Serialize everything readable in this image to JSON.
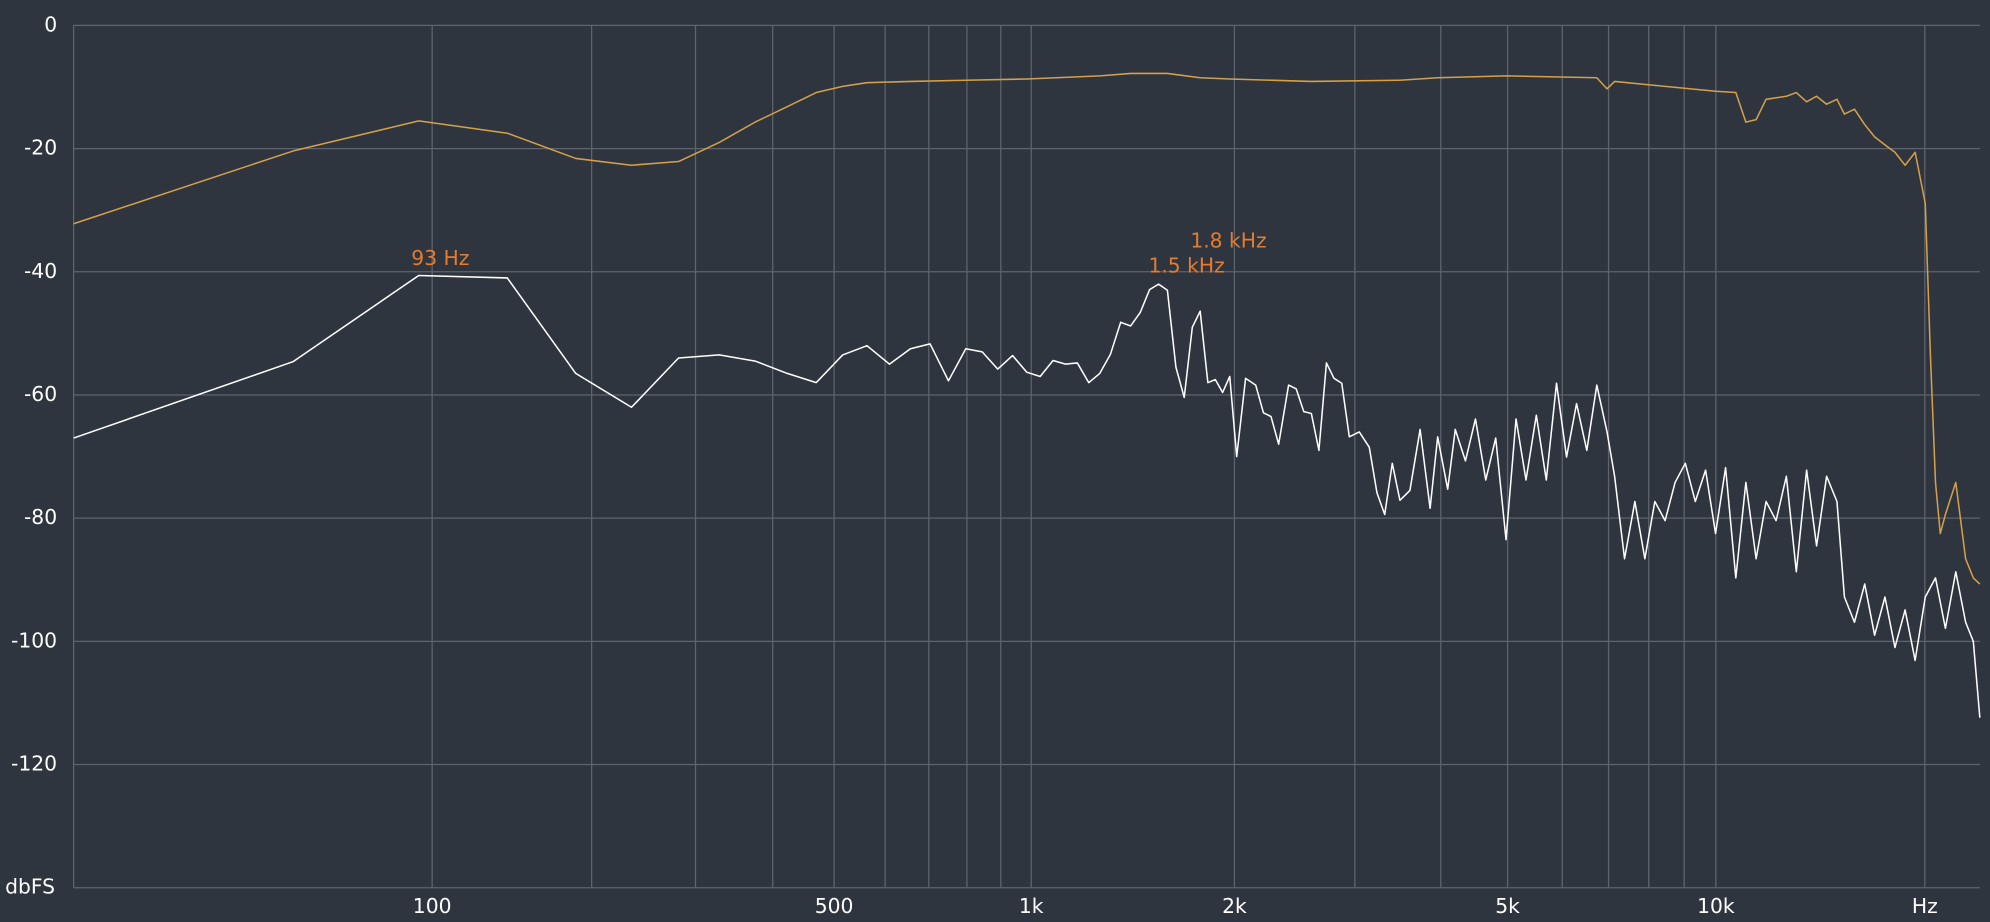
{
  "chart_data": {
    "type": "line",
    "xscale": "log",
    "xlim": [
      0,
      24000
    ],
    "xticks": [
      100,
      500,
      {
        "value": 1000,
        "label": "1k"
      },
      {
        "value": 2000,
        "label": "2k"
      },
      {
        "value": 5000,
        "label": "5k"
      },
      {
        "value": 10000,
        "label": "10k"
      },
      {
        "value": 20000,
        "label": "Hz"
      }
    ],
    "xgrid": [
      200,
      300,
      400,
      600,
      700,
      800,
      900,
      3000,
      4000,
      6000,
      7000,
      8000,
      9000
    ],
    "ylim": [
      -140,
      0
    ],
    "yticks": [
      0,
      -20,
      -40,
      -60,
      -80,
      -100,
      -120,
      {
        "value": -140,
        "label": "dbFS"
      }
    ],
    "grid": true,
    "annotations": [
      "93 Hz",
      "1.5 kHz",
      "1.8 kHz"
    ],
    "annotation_color": "#e57b2c",
    "series": [
      {
        "color": "#d4a04a",
        "x": [
          0,
          46.875,
          93.75,
          140.625,
          187.5,
          234.375,
          281.25,
          328.125,
          375,
          421.875,
          468.75,
          515.625,
          562.5,
          656.25,
          796.875,
          984.375,
          1265.625,
          1406.25,
          1593.75,
          1781.25,
          1968.75,
          2592,
          3489,
          3959,
          4974,
          6731,
          6964,
          7142,
          8448,
          9990,
          10685,
          11047,
          11430,
          11814,
          12637,
          13061,
          13515,
          13970,
          14442,
          14946,
          15321,
          15839,
          16386,
          16934,
          17524,
          18114,
          18734,
          19367,
          20030,
          20375,
          20721,
          21052,
          21412,
          22161,
          22895,
          23486,
          24000
        ],
        "values": [
          -32.2,
          -20.4,
          -15.5,
          -17.5,
          -21.6,
          -22.7,
          -22.1,
          -19,
          -15.7,
          -13.2,
          -10.9,
          -9.9,
          -9.3,
          -9.1,
          -8.9,
          -8.7,
          -8.2,
          -7.8,
          -7.8,
          -8.5,
          -8.7,
          -9.1,
          -8.9,
          -8.5,
          -8.2,
          -8.5,
          -10.3,
          -9.1,
          -9.9,
          -10.7,
          -10.9,
          -15.7,
          -15.3,
          -12,
          -11.5,
          -10.9,
          -12.4,
          -11.5,
          -12.8,
          -12,
          -14.4,
          -13.6,
          -16.1,
          -18.1,
          -19.4,
          -20.6,
          -22.7,
          -20.6,
          -28.9,
          -53.6,
          -74.2,
          -82.5,
          -79.4,
          -74.2,
          -86.6,
          -89.7,
          -90.7
        ]
      },
      {
        "color": "#ffffff",
        "x": [
          0,
          46.875,
          93.75,
          140.625,
          187.5,
          234.375,
          281.25,
          328.125,
          375,
          421.875,
          468.75,
          515.625,
          562.5,
          609.375,
          656.25,
          703.125,
          750,
          796.875,
          843.75,
          890.625,
          937.5,
          984.375,
          1031.25,
          1078.125,
          1125,
          1171.875,
          1218.75,
          1265.625,
          1312.5,
          1359.375,
          1406.25,
          1453.125,
          1500,
          1546.875,
          1593.75,
          1640.625,
          1687.5,
          1734.375,
          1781.25,
          1828.125,
          1875,
          1921.875,
          1968.75,
          2015.625,
          2077,
          2149,
          2206,
          2263,
          2322,
          2401,
          2463,
          2527,
          2592,
          2659,
          2727,
          2797,
          2871,
          2945,
          3045,
          3149,
          3231,
          3316,
          3401,
          3489,
          3608,
          3733,
          3860,
          3959,
          4094,
          4199,
          4344,
          4492,
          4649,
          4806,
          4974,
          5143,
          5317,
          5503,
          5689,
          5886,
          6086,
          6292,
          6511,
          6731,
          6964,
          7142,
          7382,
          7640,
          7898,
          8164,
          8448,
          8733,
          9035,
          9340,
          9664,
          9990,
          10328,
          10685,
          11047,
          11430,
          11814,
          12213,
          12637,
          13061,
          13515,
          13970,
          14442,
          14946,
          15321,
          15839,
          16386,
          16934,
          17524,
          18114,
          18734,
          19367,
          20030,
          20721,
          21412,
          22161,
          22895,
          23486,
          24000
        ],
        "values": [
          -67,
          -54.6,
          -40.6,
          -41,
          -56.5,
          -62,
          -54,
          -53.5,
          -54.5,
          -56.5,
          -58,
          -53.5,
          -52,
          -55,
          -52.5,
          -51.7,
          -57.7,
          -52.5,
          -53,
          -55.8,
          -53.6,
          -56.3,
          -57,
          -54.4,
          -55,
          -54.8,
          -58,
          -56.5,
          -53.4,
          -48.2,
          -48.8,
          -46.6,
          -42.9,
          -42,
          -43,
          -55.5,
          -60.4,
          -49,
          -46.4,
          -58,
          -57.5,
          -59.6,
          -57,
          -70,
          -57.3,
          -58.4,
          -62.9,
          -63.5,
          -68,
          -58.4,
          -59,
          -62.7,
          -63,
          -69,
          -54.8,
          -57.3,
          -58.1,
          -66.8,
          -66,
          -68.5,
          -75.9,
          -79.4,
          -71.1,
          -77.1,
          -75.5,
          -65.6,
          -78.4,
          -66.8,
          -75.3,
          -65.6,
          -70.7,
          -63.9,
          -73.8,
          -67,
          -83.5,
          -63.9,
          -73.8,
          -63.3,
          -73.8,
          -58.1,
          -70.1,
          -61.4,
          -69,
          -58.4,
          -66,
          -73.2,
          -86.6,
          -77.3,
          -86.6,
          -77.3,
          -80.4,
          -74.2,
          -71.1,
          -77.3,
          -72.2,
          -82.5,
          -71.8,
          -89.7,
          -74.2,
          -86.6,
          -77.3,
          -80.4,
          -73.2,
          -88.7,
          -72.2,
          -84.5,
          -73.2,
          -77.3,
          -92.8,
          -96.9,
          -90.7,
          -99,
          -92.8,
          -101,
          -94.9,
          -103.1,
          -92.8,
          -89.7,
          -97.9,
          -88.7,
          -96.9,
          -100,
          -112.4
        ]
      }
    ]
  }
}
